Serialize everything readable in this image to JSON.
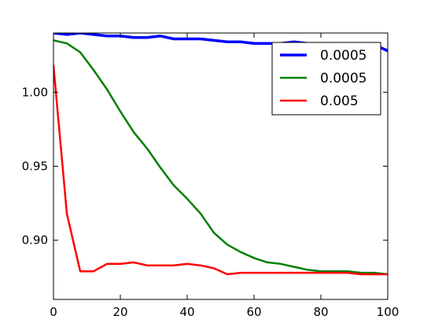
{
  "chart_data": {
    "type": "line",
    "title": "",
    "xlabel": "",
    "ylabel": "",
    "xlim": [
      0,
      100
    ],
    "ylim": [
      0.86,
      1.04
    ],
    "grid": false,
    "legend_position": "top-right",
    "x_ticks": [
      "0",
      "20",
      "40",
      "60",
      "80",
      "100"
    ],
    "y_ticks": [
      "0.90",
      "0.95",
      "1.00"
    ],
    "x": [
      0,
      4,
      8,
      12,
      16,
      20,
      24,
      28,
      32,
      36,
      40,
      44,
      48,
      52,
      56,
      60,
      64,
      68,
      72,
      76,
      80,
      84,
      88,
      92,
      96,
      100
    ],
    "series": [
      {
        "name": "0.0005",
        "color": "#0000ff",
        "line_width": "thick",
        "values": [
          1.04,
          1.039,
          1.04,
          1.039,
          1.038,
          1.038,
          1.037,
          1.037,
          1.038,
          1.036,
          1.036,
          1.036,
          1.035,
          1.034,
          1.034,
          1.033,
          1.033,
          1.033,
          1.034,
          1.033,
          1.033,
          1.032,
          1.033,
          1.033,
          1.032,
          1.028
        ]
      },
      {
        "name": "0.0005",
        "color": "#008000",
        "line_width": "normal",
        "values": [
          1.035,
          1.033,
          1.027,
          1.015,
          1.002,
          0.987,
          0.973,
          0.962,
          0.949,
          0.937,
          0.928,
          0.918,
          0.905,
          0.897,
          0.892,
          0.888,
          0.885,
          0.884,
          0.882,
          0.88,
          0.879,
          0.879,
          0.879,
          0.878,
          0.878,
          0.877
        ]
      },
      {
        "name": "0.005",
        "color": "#ff0000",
        "line_width": "normal",
        "values": [
          1.018,
          0.918,
          0.879,
          0.879,
          0.884,
          0.884,
          0.885,
          0.883,
          0.883,
          0.883,
          0.884,
          0.883,
          0.881,
          0.877,
          0.878,
          0.878,
          0.878,
          0.878,
          0.878,
          0.878,
          0.878,
          0.878,
          0.878,
          0.877,
          0.877,
          0.877
        ]
      }
    ]
  }
}
